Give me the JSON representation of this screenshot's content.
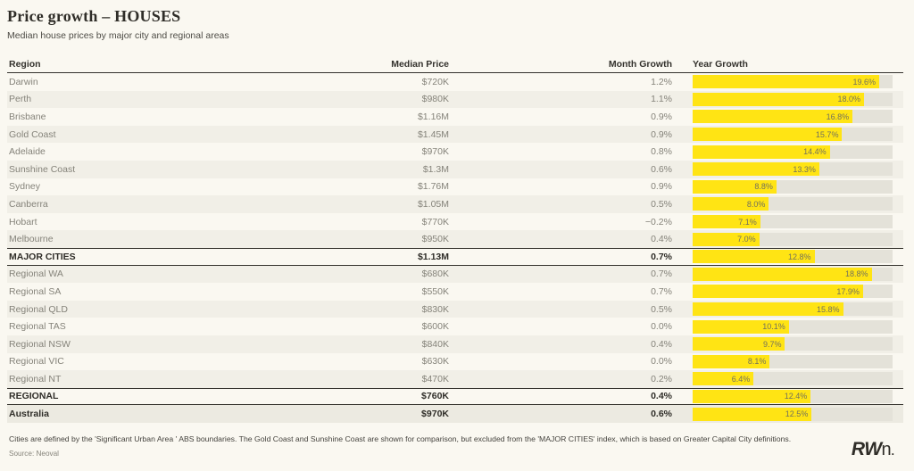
{
  "header": {
    "title": "Price growth – HOUSES",
    "subtitle": "Median house prices by major city and regional areas"
  },
  "columns": {
    "region": "Region",
    "median_price": "Median Price",
    "month_growth": "Month Growth",
    "year_growth": "Year Growth"
  },
  "chart_data": {
    "type": "table",
    "bar_column": "Year Growth",
    "bar_scale_max_pct": 21,
    "bar_color": "#ffe414",
    "bar_track_color": "#e4e2d9",
    "columns": [
      "Region",
      "Median Price",
      "Month Growth",
      "Year Growth"
    ],
    "rows": [
      {
        "region": "Darwin",
        "median_price": "$720K",
        "month_growth": "1.2%",
        "year_growth_label": "19.6%",
        "year_growth_pct": 19.6,
        "style": "normal"
      },
      {
        "region": "Perth",
        "median_price": "$980K",
        "month_growth": "1.1%",
        "year_growth_label": "18.0%",
        "year_growth_pct": 18.0,
        "style": "shade"
      },
      {
        "region": "Brisbane",
        "median_price": "$1.16M",
        "month_growth": "0.9%",
        "year_growth_label": "16.8%",
        "year_growth_pct": 16.8,
        "style": "normal"
      },
      {
        "region": "Gold Coast",
        "median_price": "$1.45M",
        "month_growth": "0.9%",
        "year_growth_label": "15.7%",
        "year_growth_pct": 15.7,
        "style": "shade"
      },
      {
        "region": "Adelaide",
        "median_price": "$970K",
        "month_growth": "0.8%",
        "year_growth_label": "14.4%",
        "year_growth_pct": 14.4,
        "style": "normal"
      },
      {
        "region": "Sunshine Coast",
        "median_price": "$1.3M",
        "month_growth": "0.6%",
        "year_growth_label": "13.3%",
        "year_growth_pct": 13.3,
        "style": "shade"
      },
      {
        "region": "Sydney",
        "median_price": "$1.76M",
        "month_growth": "0.9%",
        "year_growth_label": "8.8%",
        "year_growth_pct": 8.8,
        "style": "normal"
      },
      {
        "region": "Canberra",
        "median_price": "$1.05M",
        "month_growth": "0.5%",
        "year_growth_label": "8.0%",
        "year_growth_pct": 8.0,
        "style": "shade"
      },
      {
        "region": "Hobart",
        "median_price": "$770K",
        "month_growth": "−0.2%",
        "year_growth_label": "7.1%",
        "year_growth_pct": 7.1,
        "style": "normal"
      },
      {
        "region": "Melbourne",
        "median_price": "$950K",
        "month_growth": "0.4%",
        "year_growth_label": "7.0%",
        "year_growth_pct": 7.0,
        "style": "shade"
      },
      {
        "region": "MAJOR CITIES",
        "median_price": "$1.13M",
        "month_growth": "0.7%",
        "year_growth_label": "12.8%",
        "year_growth_pct": 12.8,
        "style": "total"
      },
      {
        "region": "Regional WA",
        "median_price": "$680K",
        "month_growth": "0.7%",
        "year_growth_label": "18.8%",
        "year_growth_pct": 18.8,
        "style": "shade"
      },
      {
        "region": "Regional SA",
        "median_price": "$550K",
        "month_growth": "0.7%",
        "year_growth_label": "17.9%",
        "year_growth_pct": 17.9,
        "style": "normal"
      },
      {
        "region": "Regional QLD",
        "median_price": "$830K",
        "month_growth": "0.5%",
        "year_growth_label": "15.8%",
        "year_growth_pct": 15.8,
        "style": "shade"
      },
      {
        "region": "Regional TAS",
        "median_price": "$600K",
        "month_growth": "0.0%",
        "year_growth_label": "10.1%",
        "year_growth_pct": 10.1,
        "style": "normal"
      },
      {
        "region": "Regional NSW",
        "median_price": "$840K",
        "month_growth": "0.4%",
        "year_growth_label": "9.7%",
        "year_growth_pct": 9.7,
        "style": "shade"
      },
      {
        "region": "Regional VIC",
        "median_price": "$630K",
        "month_growth": "0.0%",
        "year_growth_label": "8.1%",
        "year_growth_pct": 8.1,
        "style": "normal"
      },
      {
        "region": "Regional NT",
        "median_price": "$470K",
        "month_growth": "0.2%",
        "year_growth_label": "6.4%",
        "year_growth_pct": 6.4,
        "style": "shade"
      },
      {
        "region": "REGIONAL",
        "median_price": "$760K",
        "month_growth": "0.4%",
        "year_growth_label": "12.4%",
        "year_growth_pct": 12.4,
        "style": "total"
      },
      {
        "region": "Australia",
        "median_price": "$970K",
        "month_growth": "0.6%",
        "year_growth_label": "12.5%",
        "year_growth_pct": 12.5,
        "style": "grand"
      }
    ],
    "title": "Price growth – HOUSES",
    "subtitle": "Median house prices by major city and regional areas"
  },
  "footer": {
    "footnote": "Cities are defined by the 'Significant Urban Area ' ABS boundaries. The Gold Coast and Sunshine Coast are shown for comparison, but excluded from the 'MAJOR CITIES' index, which is based on Greater Capital City definitions.",
    "source": "Source: Neoval",
    "logo_rw": "RW",
    "logo_n": "n",
    "logo_dot": "."
  }
}
